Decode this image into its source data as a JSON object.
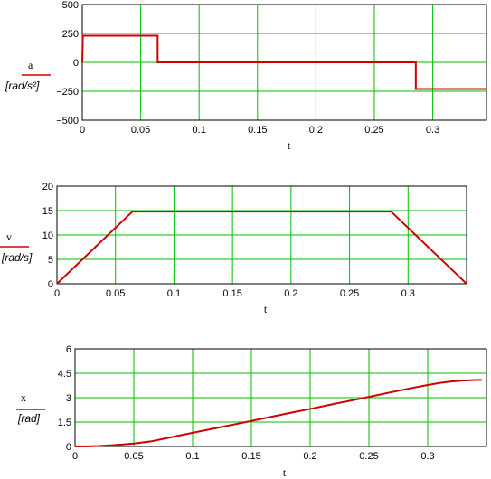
{
  "chart_data": [
    {
      "type": "line",
      "ylabel": "a",
      "yunit": "[rad/s²]",
      "xlabel": "t",
      "xlim": [
        0,
        0.346
      ],
      "ylim": [
        -500,
        500
      ],
      "xticks": [
        0,
        0.05,
        0.1,
        0.15,
        0.2,
        0.25,
        0.3
      ],
      "xtick_labels": [
        "0",
        "0.05",
        "0.1",
        "0.15",
        "0.2",
        "0.25",
        "0.3"
      ],
      "yticks": [
        500,
        250,
        0,
        -250,
        -500
      ],
      "ytick_labels": [
        "500",
        "250",
        "0",
        "−250",
        "−500"
      ],
      "grid": true,
      "line_color": "#d00000",
      "grid_color": "#00c000",
      "series": [
        {
          "x": [
            0,
            0.0005,
            0.0645,
            0.0645,
            0.2855,
            0.2855,
            0.346
          ],
          "y": [
            0,
            230,
            230,
            0,
            0,
            -230,
            -230
          ]
        }
      ]
    },
    {
      "type": "line",
      "ylabel": "v",
      "yunit": "[rad/s]",
      "xlabel": "t",
      "xlim": [
        0,
        0.35
      ],
      "ylim": [
        0,
        20
      ],
      "xticks": [
        0,
        0.05,
        0.1,
        0.15,
        0.2,
        0.25,
        0.3
      ],
      "xtick_labels": [
        "0",
        "0.05",
        "0.1",
        "0.15",
        "0.2",
        "0.25",
        "0.3"
      ],
      "yticks": [
        20,
        15,
        10,
        5,
        0
      ],
      "ytick_labels": [
        "20",
        "15",
        "10",
        "5",
        "0"
      ],
      "grid": true,
      "line_color": "#d00000",
      "grid_color": "#00c000",
      "series": [
        {
          "x": [
            0,
            0.0645,
            0.2855,
            0.35
          ],
          "y": [
            0,
            14.8,
            14.8,
            0
          ]
        }
      ]
    },
    {
      "type": "line",
      "ylabel": "x",
      "yunit": "[rad]",
      "xlabel": "t",
      "xlim": [
        0,
        0.35
      ],
      "ylim": [
        0,
        6
      ],
      "xticks": [
        0,
        0.05,
        0.1,
        0.15,
        0.2,
        0.25,
        0.3
      ],
      "xtick_labels": [
        "0",
        "0.05",
        "0.1",
        "0.15",
        "0.2",
        "0.25",
        "0.3"
      ],
      "yticks": [
        6,
        4.5,
        3,
        1.5,
        0
      ],
      "ytick_labels": [
        "6",
        "4.5",
        "3",
        "1.5",
        "0"
      ],
      "grid": true,
      "line_color": "#d00000",
      "grid_color": "#00c000",
      "series": [
        {
          "x": [
            0,
            0.01,
            0.02,
            0.03,
            0.04,
            0.05,
            0.0645,
            0.08,
            0.1,
            0.12,
            0.15,
            0.18,
            0.2,
            0.22,
            0.25,
            0.27,
            0.2855,
            0.3,
            0.31,
            0.32,
            0.33,
            0.34,
            0.346
          ],
          "y": [
            0,
            0.007,
            0.03,
            0.07,
            0.12,
            0.18,
            0.31,
            0.54,
            0.84,
            1.13,
            1.57,
            2.02,
            2.31,
            2.61,
            3.05,
            3.35,
            3.58,
            3.78,
            3.9,
            3.99,
            4.05,
            4.08,
            4.09
          ]
        }
      ]
    }
  ]
}
